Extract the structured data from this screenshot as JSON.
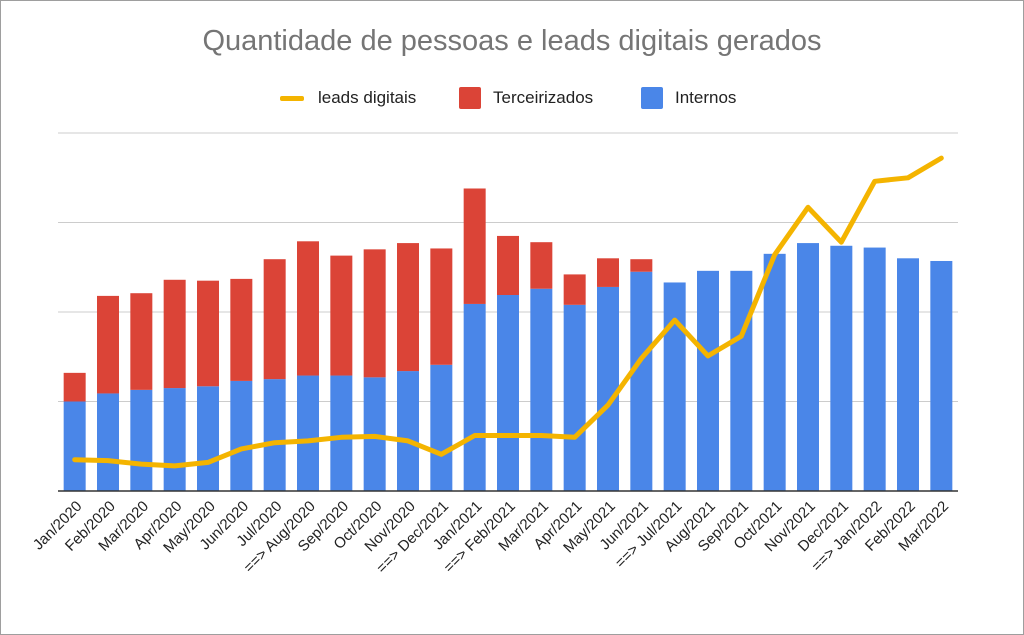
{
  "chart_data": {
    "type": "bar",
    "title": "Quantidade de pessoas e leads digitais gerados",
    "stacked": true,
    "grid": true,
    "legend_position": "top",
    "categories": [
      "Jan/2020",
      "Feb/2020",
      "Mar/2020",
      "Apr/2020",
      "May/2020",
      "Jun/2020",
      "Jul/2020",
      "==> Aug/2020",
      "Sep/2020",
      "Oct/2020",
      "Nov/2020",
      "==> Dec/2021",
      "Jan/2021",
      "==> Feb/2021",
      "Mar/2021",
      "Apr/2021",
      "May/2021",
      "Jun/2021",
      "==> Jul/2021",
      "Aug/2021",
      "Sep/2021",
      "Oct/2021",
      "Nov/2021",
      "Dec/2021",
      "==> Jan/2022",
      "Feb/2022",
      "Mar/2022"
    ],
    "ylim": [
      0,
      4
    ],
    "series": [
      {
        "name": "Internos",
        "kind": "bar",
        "color": "#4a86e8",
        "values": [
          1.0,
          1.09,
          1.13,
          1.15,
          1.17,
          1.23,
          1.25,
          1.29,
          1.29,
          1.27,
          1.34,
          1.41,
          2.09,
          2.19,
          2.26,
          2.08,
          2.28,
          2.45,
          2.33,
          2.46,
          2.46,
          2.65,
          2.77,
          2.74,
          2.72,
          2.6,
          2.57
        ]
      },
      {
        "name": "Terceirizados",
        "kind": "bar",
        "color": "#db4437",
        "values": [
          0.32,
          1.09,
          1.08,
          1.21,
          1.18,
          1.14,
          1.34,
          1.5,
          1.34,
          1.43,
          1.43,
          1.3,
          1.29,
          0.66,
          0.52,
          0.34,
          0.32,
          0.14,
          0,
          0,
          0,
          0,
          0,
          0,
          0,
          0,
          0
        ]
      },
      {
        "name": "leads digitais",
        "kind": "line",
        "color": "#f4b400",
        "values": [
          0.35,
          0.34,
          0.3,
          0.28,
          0.32,
          0.47,
          0.54,
          0.56,
          0.6,
          0.61,
          0.56,
          0.41,
          0.62,
          0.62,
          0.62,
          0.6,
          0.96,
          1.48,
          1.91,
          1.51,
          1.73,
          2.64,
          3.17,
          2.78,
          3.46,
          3.5,
          3.72
        ]
      }
    ]
  }
}
